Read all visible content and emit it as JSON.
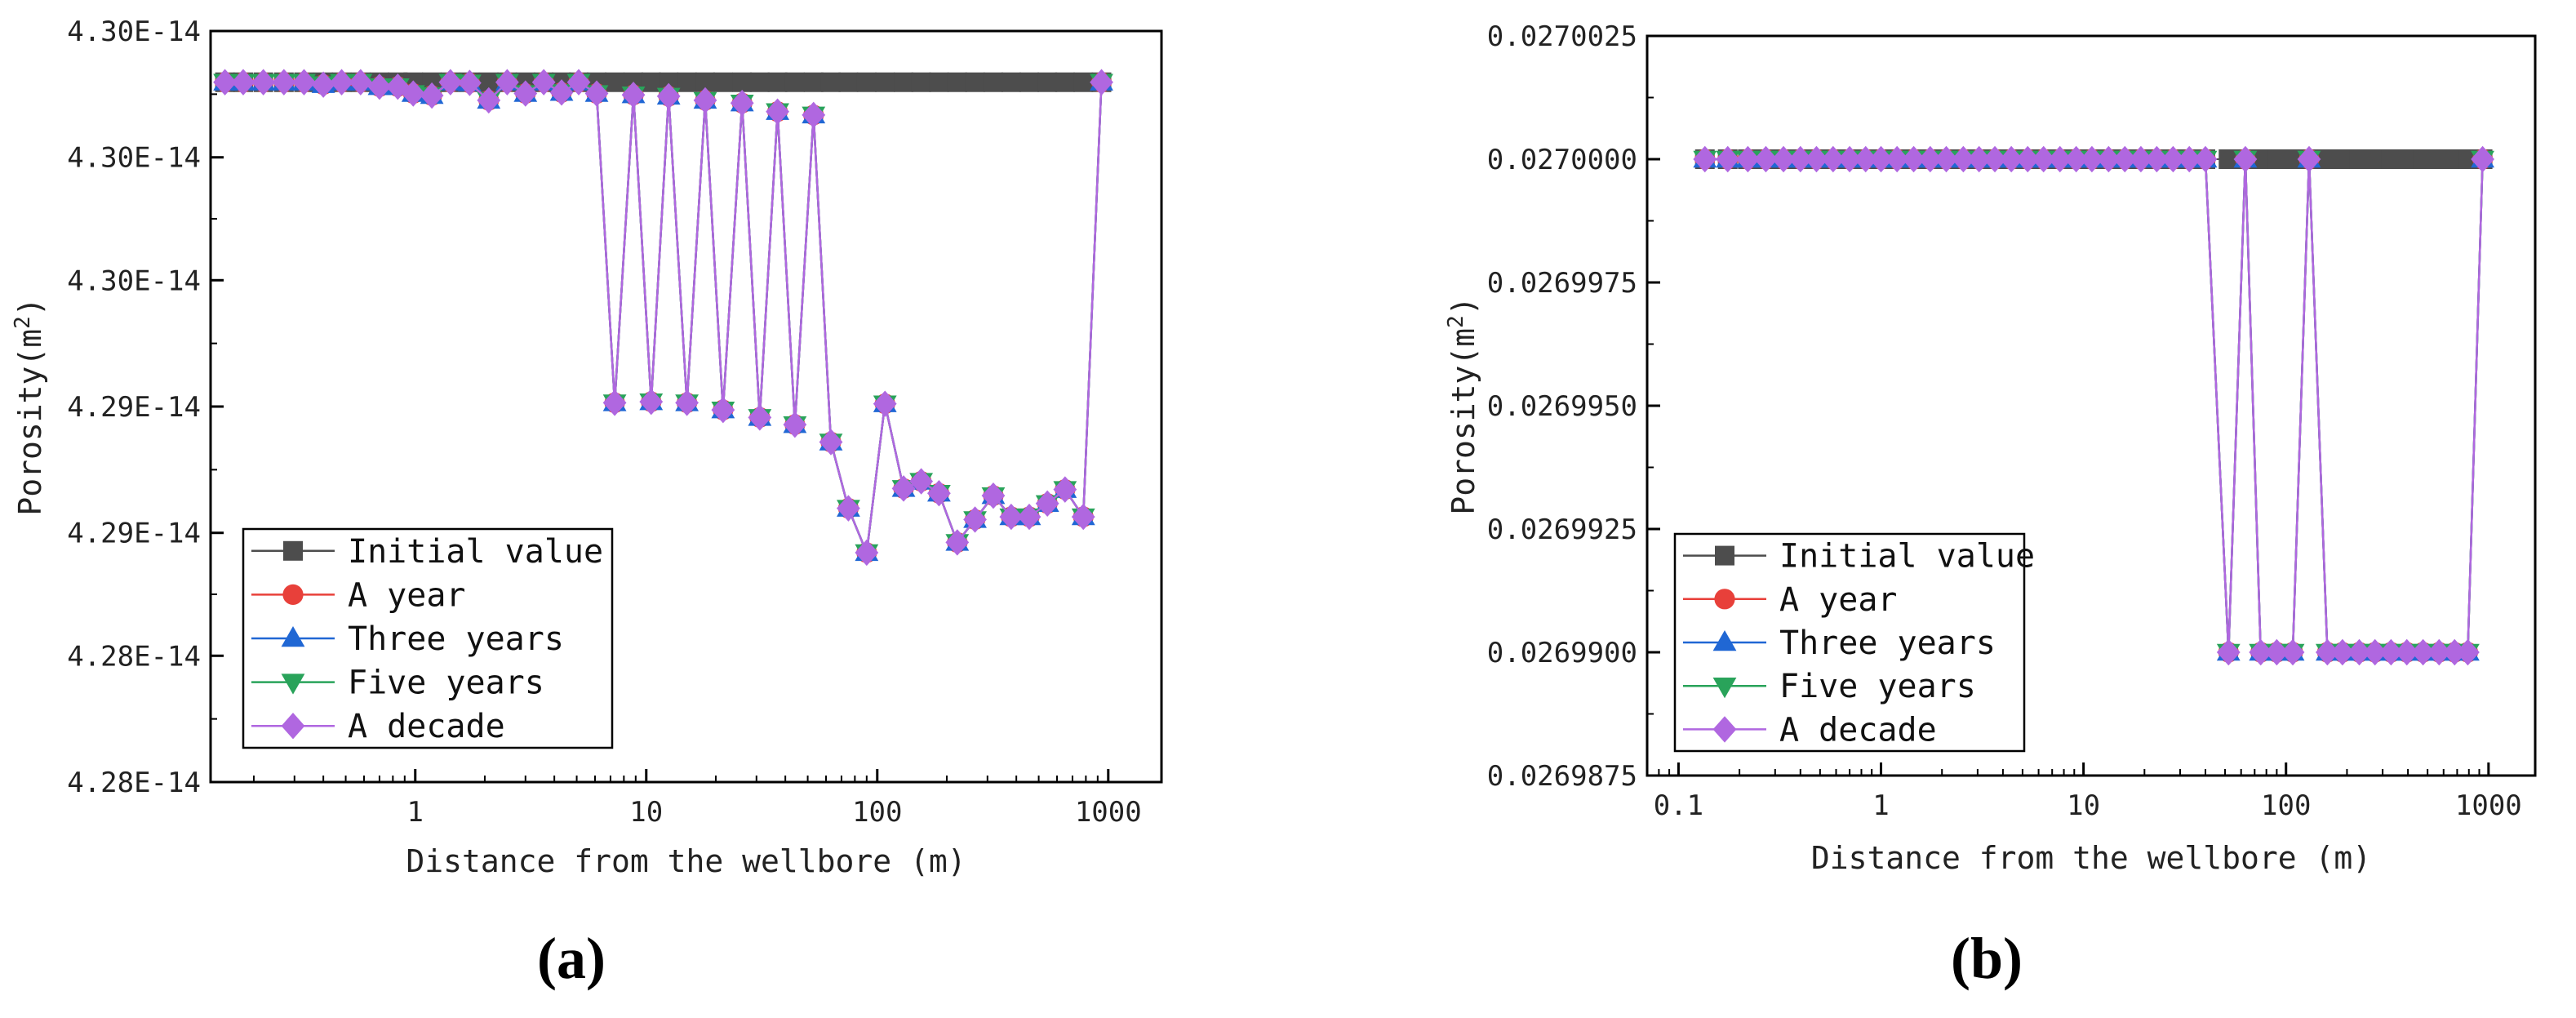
{
  "colors": {
    "initial": "#4d4d4d",
    "year": "#e8403a",
    "three": "#2067d4",
    "five": "#29a35a",
    "decade": "#b067e0"
  },
  "legend_markers": {
    "initial": "square",
    "year": "circle",
    "three": "triangle-up",
    "five": "triangle-down",
    "decade": "diamond"
  },
  "panels": [
    {
      "panel_label": "(a)",
      "legend_position": "bottom-left"
    },
    {
      "panel_label": "(b)",
      "legend_position": "bottom-left"
    }
  ],
  "chart_data": [
    {
      "type": "line",
      "xscale": "log",
      "xlim": [
        0.13,
        1700
      ],
      "ylim": [
        4.2795e-14,
        4.3015e-14
      ],
      "xlabel": "Distance from the wellbore (m)",
      "ylabel": "Porosity(m",
      "ylabel_sup": "2",
      "ylabel_close": ")",
      "xticks": [
        {
          "value": 1,
          "label": "1"
        },
        {
          "value": 10,
          "label": "10"
        },
        {
          "value": 100,
          "label": "100"
        },
        {
          "value": 1000,
          "label": "1000"
        }
      ],
      "yticks": [
        {
          "value": 4.2795e-14,
          "label": "4.28E-14"
        },
        {
          "value": 4.2832e-14,
          "label": "4.28E-14"
        },
        {
          "value": 4.2868e-14,
          "label": "4.29E-14"
        },
        {
          "value": 4.2905e-14,
          "label": "4.29E-14"
        },
        {
          "value": 4.2942e-14,
          "label": "4.30E-14"
        },
        {
          "value": 4.2978e-14,
          "label": "4.30E-14"
        },
        {
          "value": 4.3015e-14,
          "label": "4.30E-14"
        }
      ],
      "x": [
        0.15,
        0.18,
        0.22,
        0.27,
        0.33,
        0.4,
        0.48,
        0.58,
        0.7,
        0.84,
        0.98,
        1.18,
        1.42,
        1.72,
        2.08,
        2.5,
        3.0,
        3.6,
        4.3,
        5.1,
        6.1,
        7.3,
        8.8,
        10.5,
        12.5,
        15.0,
        18.0,
        21.5,
        26.0,
        31.0,
        37.0,
        44.0,
        53.0,
        63.0,
        75.0,
        90.0,
        108.0,
        130.0,
        155.0,
        185.0,
        222.0,
        265.0,
        318.0,
        380.0,
        455.0,
        545.0,
        650.0,
        780.0,
        935.0
      ],
      "series": [
        {
          "name": "Initial value",
          "key": "initial",
          "values": [
            4.3e-14,
            4.3e-14,
            4.3e-14,
            4.3e-14,
            4.3e-14,
            4.3e-14,
            4.3e-14,
            4.3e-14,
            4.3e-14,
            4.3e-14,
            4.3e-14,
            4.3e-14,
            4.3e-14,
            4.3e-14,
            4.3e-14,
            4.3e-14,
            4.3e-14,
            4.3e-14,
            4.3e-14,
            4.3e-14,
            4.3e-14,
            4.3e-14,
            4.3e-14,
            4.3e-14,
            4.3e-14,
            4.3e-14,
            4.3e-14,
            4.3e-14,
            4.3e-14,
            4.3e-14,
            4.3e-14,
            4.3e-14,
            4.3e-14,
            4.3e-14,
            4.3e-14,
            4.3e-14,
            4.3e-14,
            4.3e-14,
            4.3e-14,
            4.3e-14,
            4.3e-14,
            4.3e-14,
            4.3e-14,
            4.3e-14,
            4.3e-14,
            4.3e-14,
            4.3e-14,
            4.3e-14,
            4.3e-14
          ]
        },
        {
          "name": "A year",
          "key": "year",
          "values": [
            4.3e-14,
            4.3e-14,
            4.3e-14,
            4.3e-14,
            4.3e-14,
            4.29993e-14,
            4.3e-14,
            4.3e-14,
            4.29987e-14,
            4.29987e-14,
            4.29967e-14,
            4.29961e-14,
            4.3e-14,
            4.29998e-14,
            4.29947e-14,
            4.3e-14,
            4.29967e-14,
            4.3e-14,
            4.2997e-14,
            4.3e-14,
            4.29967e-14,
            4.29061e-14,
            4.29963e-14,
            4.29064e-14,
            4.29959e-14,
            4.29061e-14,
            4.29947e-14,
            4.2904e-14,
            4.29939e-14,
            4.29018e-14,
            4.29914e-14,
            4.28997e-14,
            4.29904e-14,
            4.28946e-14,
            4.28752e-14,
            4.28622e-14,
            4.29058e-14,
            4.2881e-14,
            4.28831e-14,
            4.28796e-14,
            4.28652e-14,
            4.28719e-14,
            4.28789e-14,
            4.28727e-14,
            4.28727e-14,
            4.28766e-14,
            4.28807e-14,
            4.28727e-14,
            4.3e-14
          ]
        },
        {
          "name": "Three years",
          "key": "three",
          "values": [
            4.3e-14,
            4.3e-14,
            4.3e-14,
            4.3e-14,
            4.3e-14,
            4.29993e-14,
            4.3e-14,
            4.3e-14,
            4.29987e-14,
            4.29987e-14,
            4.29967e-14,
            4.29961e-14,
            4.3e-14,
            4.29998e-14,
            4.29947e-14,
            4.3e-14,
            4.29967e-14,
            4.3e-14,
            4.2997e-14,
            4.3e-14,
            4.29967e-14,
            4.29061e-14,
            4.29963e-14,
            4.29064e-14,
            4.29959e-14,
            4.29061e-14,
            4.29947e-14,
            4.2904e-14,
            4.29939e-14,
            4.29018e-14,
            4.29914e-14,
            4.28997e-14,
            4.29904e-14,
            4.28946e-14,
            4.28752e-14,
            4.28622e-14,
            4.29058e-14,
            4.2881e-14,
            4.28831e-14,
            4.28796e-14,
            4.28652e-14,
            4.28719e-14,
            4.28789e-14,
            4.28727e-14,
            4.28727e-14,
            4.28766e-14,
            4.28807e-14,
            4.28727e-14,
            4.3e-14
          ]
        },
        {
          "name": "Five years",
          "key": "five",
          "values": [
            4.3e-14,
            4.3e-14,
            4.3e-14,
            4.3e-14,
            4.3e-14,
            4.29993e-14,
            4.3e-14,
            4.3e-14,
            4.29987e-14,
            4.29987e-14,
            4.29967e-14,
            4.29961e-14,
            4.3e-14,
            4.29998e-14,
            4.29947e-14,
            4.3e-14,
            4.29967e-14,
            4.3e-14,
            4.2997e-14,
            4.3e-14,
            4.29967e-14,
            4.29061e-14,
            4.29963e-14,
            4.29064e-14,
            4.29959e-14,
            4.29061e-14,
            4.29947e-14,
            4.2904e-14,
            4.29939e-14,
            4.29018e-14,
            4.29914e-14,
            4.28997e-14,
            4.29904e-14,
            4.28946e-14,
            4.28752e-14,
            4.28622e-14,
            4.29058e-14,
            4.2881e-14,
            4.28831e-14,
            4.28796e-14,
            4.28652e-14,
            4.28719e-14,
            4.28789e-14,
            4.28727e-14,
            4.28727e-14,
            4.28766e-14,
            4.28807e-14,
            4.28727e-14,
            4.3e-14
          ]
        },
        {
          "name": "A decade",
          "key": "decade",
          "values": [
            4.3e-14,
            4.3e-14,
            4.3e-14,
            4.3e-14,
            4.3e-14,
            4.29993e-14,
            4.3e-14,
            4.3e-14,
            4.29987e-14,
            4.29987e-14,
            4.29967e-14,
            4.29961e-14,
            4.3e-14,
            4.29998e-14,
            4.29947e-14,
            4.3e-14,
            4.29967e-14,
            4.3e-14,
            4.2997e-14,
            4.3e-14,
            4.29967e-14,
            4.29061e-14,
            4.29963e-14,
            4.29064e-14,
            4.29959e-14,
            4.29061e-14,
            4.29947e-14,
            4.2904e-14,
            4.29939e-14,
            4.29018e-14,
            4.29914e-14,
            4.28997e-14,
            4.29904e-14,
            4.28946e-14,
            4.28752e-14,
            4.28622e-14,
            4.29058e-14,
            4.2881e-14,
            4.28831e-14,
            4.28796e-14,
            4.28652e-14,
            4.28719e-14,
            4.28789e-14,
            4.28727e-14,
            4.28727e-14,
            4.28766e-14,
            4.28807e-14,
            4.28727e-14,
            4.3e-14
          ]
        }
      ]
    },
    {
      "type": "line",
      "xscale": "log",
      "xlim": [
        0.07,
        1700
      ],
      "ylim": [
        0.0269875,
        0.0270025
      ],
      "xlabel": "Distance from the wellbore (m)",
      "ylabel": "Porosity(m",
      "ylabel_sup": "2",
      "ylabel_close": ")",
      "xticks": [
        {
          "value": 0.1,
          "label": "0.1"
        },
        {
          "value": 1,
          "label": "1"
        },
        {
          "value": 10,
          "label": "10"
        },
        {
          "value": 100,
          "label": "100"
        },
        {
          "value": 1000,
          "label": "1000"
        }
      ],
      "yticks": [
        {
          "value": 0.0269875,
          "label": "0.0269875"
        },
        {
          "value": 0.02699,
          "label": "0.0269900"
        },
        {
          "value": 0.0269925,
          "label": "0.0269925"
        },
        {
          "value": 0.026995,
          "label": "0.0269950"
        },
        {
          "value": 0.0269975,
          "label": "0.0269975"
        },
        {
          "value": 0.027,
          "label": "0.0270000"
        },
        {
          "value": 0.0270025,
          "label": "0.0270025"
        }
      ],
      "x": [
        0.135,
        0.175,
        0.22,
        0.27,
        0.33,
        0.4,
        0.48,
        0.58,
        0.7,
        0.84,
        1.0,
        1.2,
        1.45,
        1.75,
        2.1,
        2.55,
        3.05,
        3.65,
        4.4,
        5.3,
        6.35,
        7.65,
        9.2,
        11.0,
        13.3,
        16.0,
        19.2,
        23.0,
        27.7,
        33.3,
        40.0,
        52.0,
        63.0,
        75.0,
        90.0,
        108.0,
        130.0,
        160.0,
        190.0,
        230.0,
        275.0,
        330.0,
        395.0,
        475.0,
        570.0,
        680.0,
        790.0,
        935.0
      ],
      "series": [
        {
          "name": "Initial value",
          "key": "initial",
          "values": [
            0.027,
            0.027,
            0.027,
            0.027,
            0.027,
            0.027,
            0.027,
            0.027,
            0.027,
            0.027,
            0.027,
            0.027,
            0.027,
            0.027,
            0.027,
            0.027,
            0.027,
            0.027,
            0.027,
            0.027,
            0.027,
            0.027,
            0.027,
            0.027,
            0.027,
            0.027,
            0.027,
            0.027,
            0.027,
            0.027,
            0.027,
            0.027,
            0.027,
            0.027,
            0.027,
            0.027,
            0.027,
            0.027,
            0.027,
            0.027,
            0.027,
            0.027,
            0.027,
            0.027,
            0.027,
            0.027,
            0.027,
            0.027
          ]
        },
        {
          "name": "A year",
          "key": "year",
          "values": [
            0.027,
            0.027,
            0.027,
            0.027,
            0.027,
            0.027,
            0.027,
            0.027,
            0.027,
            0.027,
            0.027,
            0.027,
            0.027,
            0.027,
            0.027,
            0.027,
            0.027,
            0.027,
            0.027,
            0.027,
            0.027,
            0.027,
            0.027,
            0.027,
            0.027,
            0.027,
            0.027,
            0.027,
            0.027,
            0.027,
            0.027,
            0.02699,
            0.027,
            0.02699,
            0.02699,
            0.02699,
            0.027,
            0.02699,
            0.02699,
            0.02699,
            0.02699,
            0.02699,
            0.02699,
            0.02699,
            0.02699,
            0.02699,
            0.02699,
            0.027
          ]
        },
        {
          "name": "Three years",
          "key": "three",
          "values": [
            0.027,
            0.027,
            0.027,
            0.027,
            0.027,
            0.027,
            0.027,
            0.027,
            0.027,
            0.027,
            0.027,
            0.027,
            0.027,
            0.027,
            0.027,
            0.027,
            0.027,
            0.027,
            0.027,
            0.027,
            0.027,
            0.027,
            0.027,
            0.027,
            0.027,
            0.027,
            0.027,
            0.027,
            0.027,
            0.027,
            0.027,
            0.02699,
            0.027,
            0.02699,
            0.02699,
            0.02699,
            0.027,
            0.02699,
            0.02699,
            0.02699,
            0.02699,
            0.02699,
            0.02699,
            0.02699,
            0.02699,
            0.02699,
            0.02699,
            0.027
          ]
        },
        {
          "name": "Five years",
          "key": "five",
          "values": [
            0.027,
            0.027,
            0.027,
            0.027,
            0.027,
            0.027,
            0.027,
            0.027,
            0.027,
            0.027,
            0.027,
            0.027,
            0.027,
            0.027,
            0.027,
            0.027,
            0.027,
            0.027,
            0.027,
            0.027,
            0.027,
            0.027,
            0.027,
            0.027,
            0.027,
            0.027,
            0.027,
            0.027,
            0.027,
            0.027,
            0.027,
            0.02699,
            0.027,
            0.02699,
            0.02699,
            0.02699,
            0.027,
            0.02699,
            0.02699,
            0.02699,
            0.02699,
            0.02699,
            0.02699,
            0.02699,
            0.02699,
            0.02699,
            0.02699,
            0.027
          ]
        },
        {
          "name": "A decade",
          "key": "decade",
          "values": [
            0.027,
            0.027,
            0.027,
            0.027,
            0.027,
            0.027,
            0.027,
            0.027,
            0.027,
            0.027,
            0.027,
            0.027,
            0.027,
            0.027,
            0.027,
            0.027,
            0.027,
            0.027,
            0.027,
            0.027,
            0.027,
            0.027,
            0.027,
            0.027,
            0.027,
            0.027,
            0.027,
            0.027,
            0.027,
            0.027,
            0.027,
            0.02699,
            0.027,
            0.02699,
            0.02699,
            0.02699,
            0.027,
            0.02699,
            0.02699,
            0.02699,
            0.02699,
            0.02699,
            0.02699,
            0.02699,
            0.02699,
            0.02699,
            0.02699,
            0.027
          ]
        }
      ]
    }
  ]
}
